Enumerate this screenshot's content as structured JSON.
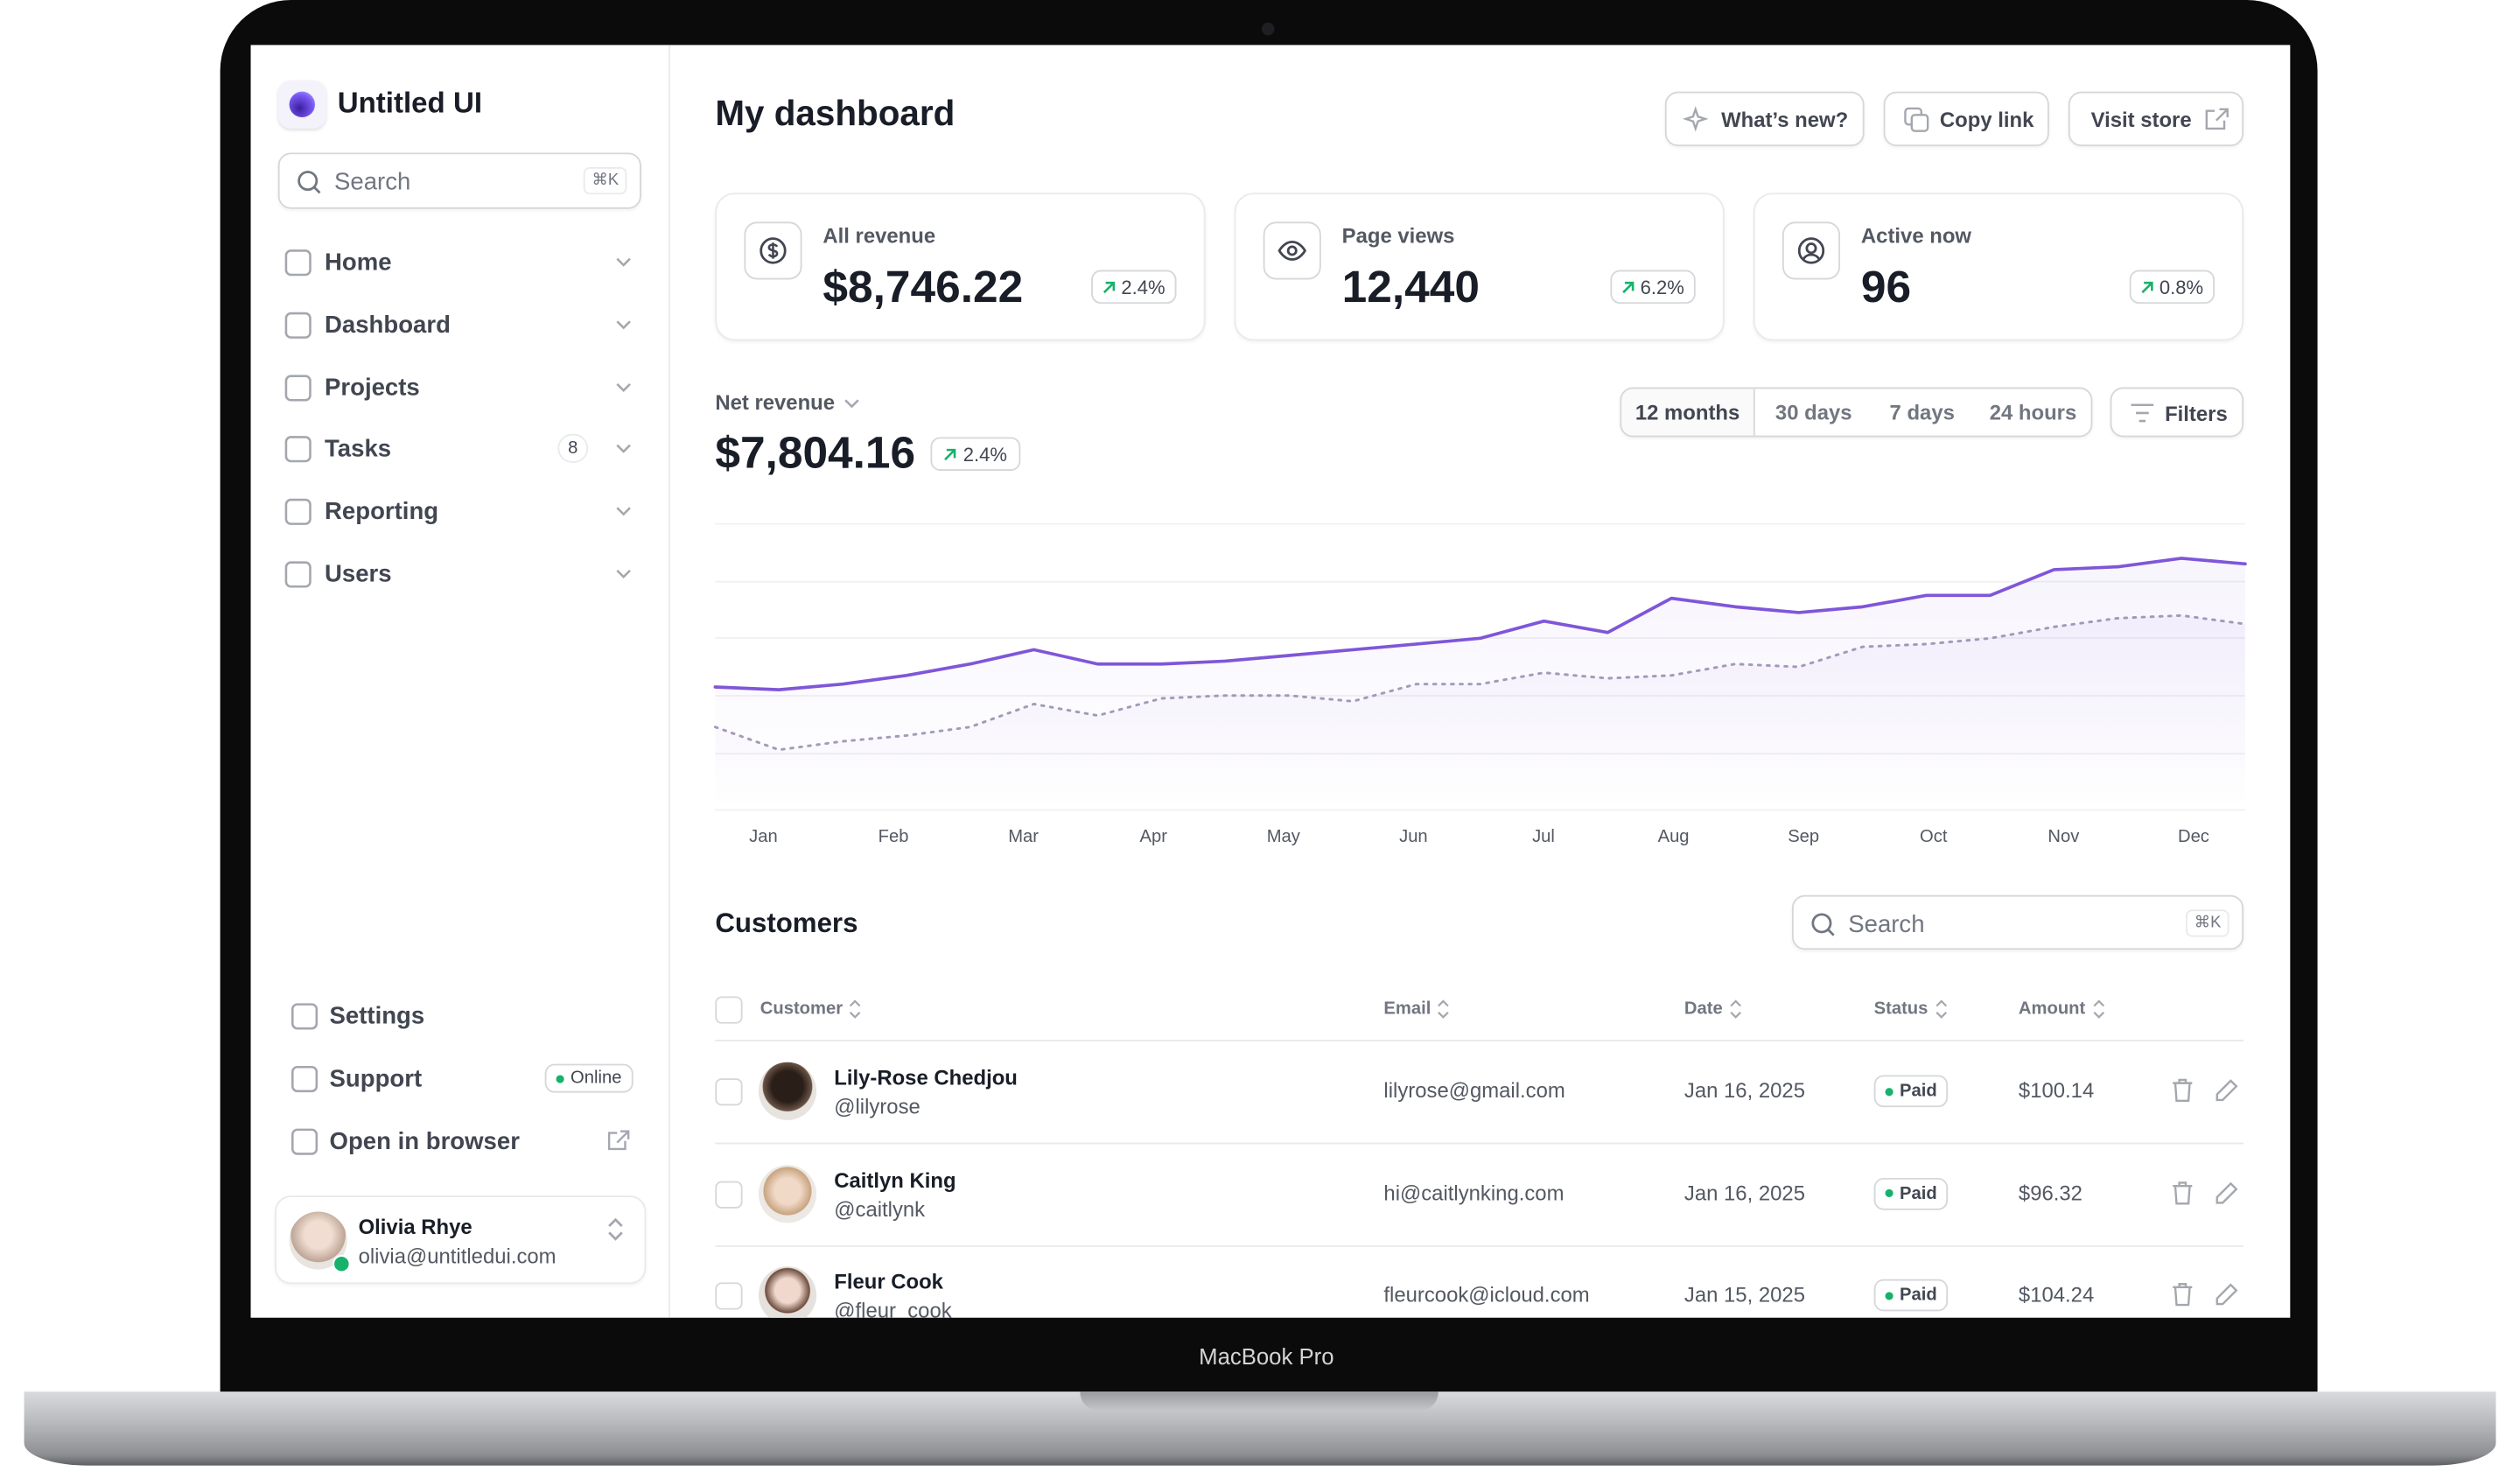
{
  "device_label": "MacBook Pro",
  "sidebar": {
    "brand": "Untitled UI",
    "search_placeholder": "Search",
    "search_shortcut": "⌘K",
    "nav": [
      {
        "label": "Home"
      },
      {
        "label": "Dashboard"
      },
      {
        "label": "Projects"
      },
      {
        "label": "Tasks",
        "badge": "8"
      },
      {
        "label": "Reporting"
      },
      {
        "label": "Users"
      }
    ],
    "footer_nav": [
      {
        "label": "Settings"
      },
      {
        "label": "Support",
        "badge": "Online"
      },
      {
        "label": "Open in browser"
      }
    ],
    "user": {
      "name": "Olivia Rhye",
      "email": "olivia@untitledui.com"
    }
  },
  "header": {
    "title": "My dashboard",
    "buttons": [
      "What’s new?",
      "Copy link",
      "Visit store"
    ]
  },
  "stats": [
    {
      "label": "All revenue",
      "value": "$8,746.22",
      "change": "2.4%"
    },
    {
      "label": "Page views",
      "value": "12,440",
      "change": "6.2%"
    },
    {
      "label": "Active now",
      "value": "96",
      "change": "0.8%"
    }
  ],
  "chart_data": {
    "type": "line",
    "title": "Net revenue",
    "total": "$7,804.16",
    "change": "2.4%",
    "ranges": [
      "12 months",
      "30 days",
      "7 days",
      "24 hours"
    ],
    "filters_label": "Filters",
    "month_labels": [
      "Jan",
      "Feb",
      "Mar",
      "Apr",
      "May",
      "Jun",
      "Jul",
      "Aug",
      "Sep",
      "Oct",
      "Nov",
      "Dec"
    ],
    "ylim": [
      0,
      100
    ],
    "series": [
      {
        "color": "#7f56d9",
        "style": "solid",
        "values": [
          43,
          42,
          44,
          47,
          51,
          56,
          51,
          51,
          52,
          54,
          56,
          58,
          60,
          66,
          62,
          74,
          71,
          69,
          71,
          75,
          75,
          84,
          85,
          88,
          86
        ]
      },
      {
        "color": "#a49cb8",
        "style": "dotted",
        "values": [
          29,
          21,
          24,
          26,
          29,
          37,
          33,
          39,
          40,
          40,
          38,
          44,
          44,
          48,
          46,
          47,
          51,
          50,
          57,
          58,
          60,
          64,
          67,
          68,
          65
        ]
      }
    ]
  },
  "customers": {
    "title": "Customers",
    "search_placeholder": "Search",
    "search_shortcut": "⌘K",
    "columns": [
      "Customer",
      "Email",
      "Date",
      "Status",
      "Amount"
    ],
    "rows": [
      {
        "name": "Lily-Rose Chedjou",
        "handle": "@lilyrose",
        "email": "lilyrose@gmail.com",
        "date": "Jan 16, 2025",
        "status": "Paid",
        "amount": "$100.14"
      },
      {
        "name": "Caitlyn King",
        "handle": "@caitlynk",
        "email": "hi@caitlynking.com",
        "date": "Jan 16, 2025",
        "status": "Paid",
        "amount": "$96.32"
      },
      {
        "name": "Fleur Cook",
        "handle": "@fleur_cook",
        "email": "fleurcook@icloud.com",
        "date": "Jan 15, 2025",
        "status": "Paid",
        "amount": "$104.24"
      }
    ]
  }
}
